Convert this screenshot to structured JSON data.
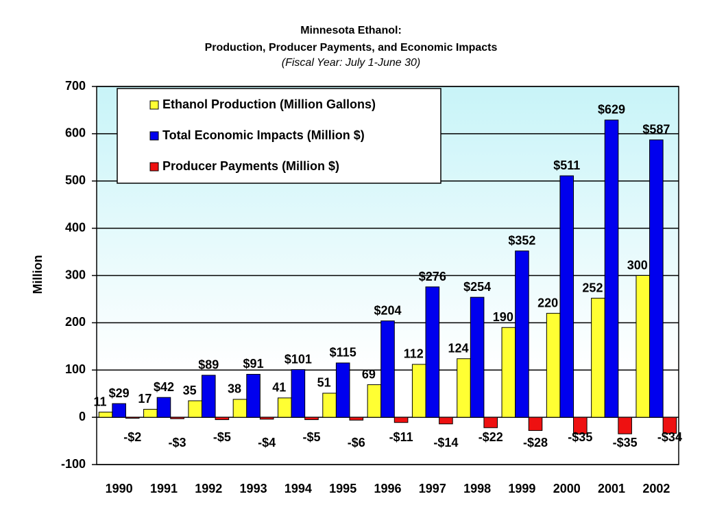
{
  "chart_data": {
    "type": "bar",
    "title": "Minnesota Ethanol:",
    "subtitle": "Production, Producer Payments, and Economic Impacts",
    "note": "(Fiscal Year: July 1-June 30)",
    "y_label": "Million",
    "categories": [
      "1990",
      "1991",
      "1992",
      "1993",
      "1994",
      "1995",
      "1996",
      "1997",
      "1998",
      "1999",
      "2000",
      "2001",
      "2002"
    ],
    "series": [
      {
        "name": "Ethanol Production (Million Gallons)",
        "color": "#ffff33",
        "values": [
          11,
          17,
          35,
          38,
          41,
          51,
          69,
          112,
          124,
          190,
          220,
          252,
          300
        ]
      },
      {
        "name": "Total Economic Impacts (Million $)",
        "color": "#0000ee",
        "values": [
          29,
          42,
          89,
          91,
          101,
          115,
          204,
          276,
          254,
          352,
          511,
          629,
          587
        ],
        "value_labels": [
          "$29",
          "$42",
          "$89",
          "$91",
          "$101",
          "$115",
          "$204",
          "$276",
          "$254",
          "$352",
          "$511",
          "$629",
          "$587"
        ]
      },
      {
        "name": "Producer Payments (Million $)",
        "color": "#ee1111",
        "values": [
          -2,
          -3,
          -5,
          -4,
          -5,
          -6,
          -11,
          -14,
          -22,
          -28,
          -35,
          -35,
          -34
        ],
        "value_labels": [
          "-$2",
          "-$3",
          "-$5",
          "-$4",
          "-$5",
          "-$6",
          "-$11",
          "-$14",
          "-$22",
          "-$28",
          "-$35",
          "-$35",
          "-$34"
        ]
      }
    ],
    "ylim": [
      -100,
      700
    ],
    "yticks": [
      -100,
      0,
      100,
      200,
      300,
      400,
      500,
      600,
      700
    ],
    "grid": true,
    "legend": "upper left"
  }
}
